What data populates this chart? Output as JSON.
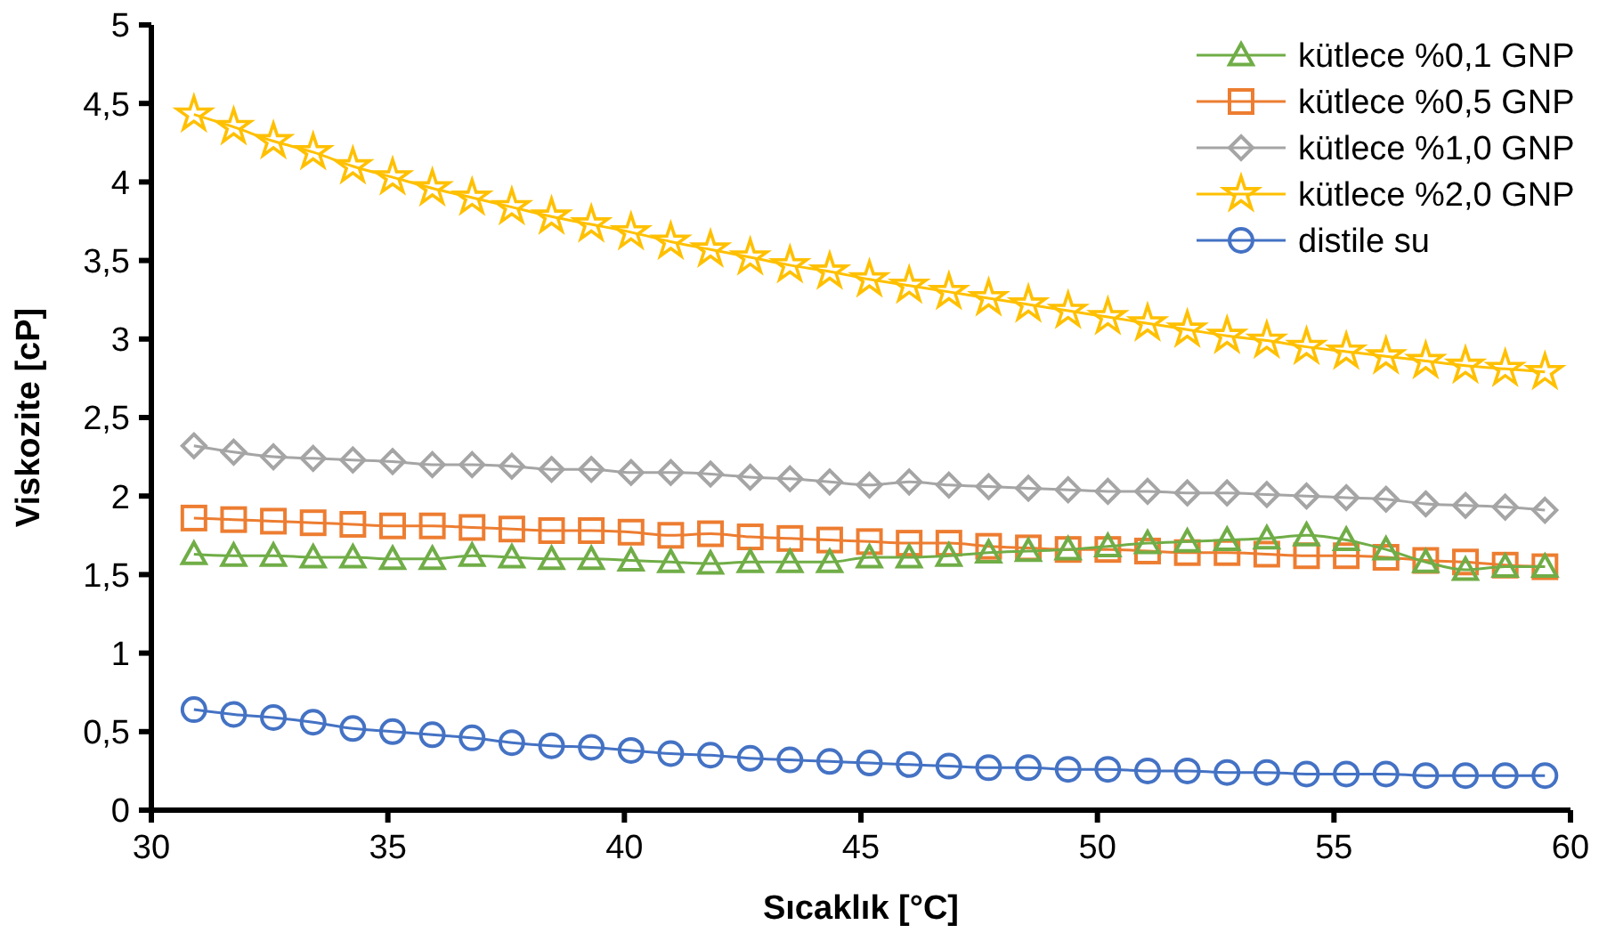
{
  "chart_data": {
    "type": "line",
    "xlabel": "Sıcaklık [°C]",
    "ylabel": "Viskozite [cP]",
    "x": [
      30.9,
      31.74,
      32.58,
      33.42,
      34.26,
      35.1,
      35.94,
      36.78,
      37.62,
      38.46,
      39.3,
      40.14,
      40.98,
      41.82,
      42.66,
      43.5,
      44.34,
      45.18,
      46.02,
      46.86,
      47.7,
      48.54,
      49.38,
      50.22,
      51.06,
      51.9,
      52.74,
      53.58,
      54.42,
      55.26,
      56.1,
      56.94,
      57.78,
      58.62,
      59.46
    ],
    "xlim": [
      30,
      60
    ],
    "xticks": [
      30,
      35,
      40,
      45,
      50,
      55,
      60
    ],
    "ylim": [
      0,
      5
    ],
    "yticks": [
      0,
      {
        "value": 0.5,
        "label": "0,5"
      },
      1,
      {
        "value": 1.5,
        "label": "1,5"
      },
      2,
      {
        "value": 2.5,
        "label": "2,5"
      },
      3,
      {
        "value": 3.5,
        "label": "3,5"
      },
      4,
      {
        "value": 4.5,
        "label": "4,5"
      },
      5
    ],
    "grid": false,
    "legend": "top right",
    "series": [
      {
        "name": "kütlece %0,1 GNP",
        "color": "#70ad47",
        "marker": "triangle",
        "values": [
          1.63,
          1.62,
          1.62,
          1.61,
          1.61,
          1.6,
          1.6,
          1.62,
          1.61,
          1.6,
          1.6,
          1.59,
          1.58,
          1.57,
          1.58,
          1.58,
          1.58,
          1.61,
          1.61,
          1.62,
          1.64,
          1.65,
          1.66,
          1.68,
          1.7,
          1.71,
          1.72,
          1.73,
          1.75,
          1.72,
          1.66,
          1.58,
          1.53,
          1.55,
          1.55
        ]
      },
      {
        "name": "kütlece %0,5 GNP",
        "color": "#ed7d31",
        "marker": "square",
        "values": [
          1.86,
          1.85,
          1.84,
          1.83,
          1.82,
          1.81,
          1.81,
          1.8,
          1.79,
          1.78,
          1.78,
          1.77,
          1.75,
          1.76,
          1.74,
          1.73,
          1.72,
          1.71,
          1.7,
          1.7,
          1.68,
          1.67,
          1.66,
          1.66,
          1.65,
          1.64,
          1.64,
          1.63,
          1.62,
          1.62,
          1.61,
          1.59,
          1.58,
          1.56,
          1.55
        ]
      },
      {
        "name": "kütlece %1,0 GNP",
        "color": "#a5a5a5",
        "marker": "diamond",
        "values": [
          2.32,
          2.28,
          2.25,
          2.24,
          2.23,
          2.22,
          2.2,
          2.2,
          2.19,
          2.17,
          2.17,
          2.15,
          2.15,
          2.14,
          2.12,
          2.11,
          2.09,
          2.07,
          2.09,
          2.07,
          2.06,
          2.05,
          2.04,
          2.03,
          2.03,
          2.02,
          2.02,
          2.01,
          2.0,
          1.99,
          1.98,
          1.95,
          1.94,
          1.93,
          1.91
        ]
      },
      {
        "name": "kütlece %2,0 GNP",
        "color": "#ffc000",
        "marker": "star",
        "values": [
          4.43,
          4.35,
          4.26,
          4.19,
          4.1,
          4.03,
          3.96,
          3.9,
          3.84,
          3.78,
          3.73,
          3.68,
          3.62,
          3.57,
          3.52,
          3.47,
          3.43,
          3.38,
          3.34,
          3.3,
          3.26,
          3.22,
          3.18,
          3.14,
          3.1,
          3.06,
          3.02,
          2.99,
          2.95,
          2.92,
          2.89,
          2.86,
          2.83,
          2.81,
          2.79
        ]
      },
      {
        "name": "distile su",
        "color": "#4472c4",
        "marker": "circle",
        "values": [
          0.64,
          0.61,
          0.59,
          0.56,
          0.52,
          0.5,
          0.48,
          0.46,
          0.43,
          0.41,
          0.4,
          0.38,
          0.36,
          0.35,
          0.33,
          0.32,
          0.31,
          0.3,
          0.29,
          0.28,
          0.27,
          0.27,
          0.26,
          0.26,
          0.25,
          0.25,
          0.24,
          0.24,
          0.23,
          0.23,
          0.23,
          0.22,
          0.22,
          0.22,
          0.22
        ]
      }
    ]
  }
}
